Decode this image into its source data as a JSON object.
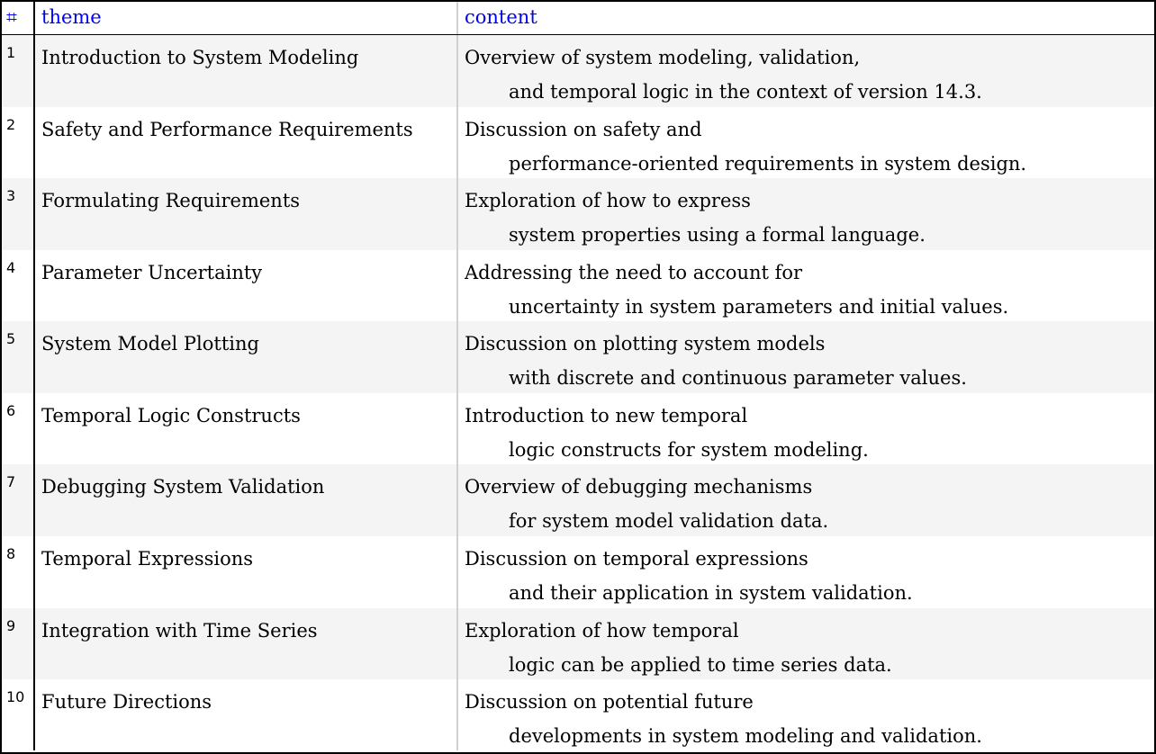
{
  "header": {
    "index": "⌗",
    "theme": "theme",
    "content": "content"
  },
  "rows": [
    {
      "n": "1",
      "theme": "Introduction to System Modeling",
      "line1": "Overview of system modeling, validation,",
      "line2": "and temporal logic in the context of version 14.3."
    },
    {
      "n": "2",
      "theme": "Safety and Performance Requirements",
      "line1": "Discussion on safety and",
      "line2": "performance-oriented requirements in system design."
    },
    {
      "n": "3",
      "theme": "Formulating Requirements",
      "line1": "Exploration of how to express",
      "line2": "system properties using a formal language."
    },
    {
      "n": "4",
      "theme": "Parameter Uncertainty",
      "line1": "Addressing the need to account for",
      "line2": "uncertainty in system parameters and initial values."
    },
    {
      "n": "5",
      "theme": "System Model Plotting",
      "line1": "Discussion on plotting system models",
      "line2": "with discrete and continuous parameter values."
    },
    {
      "n": "6",
      "theme": "Temporal Logic Constructs",
      "line1": "Introduction to new temporal",
      "line2": "logic constructs for system modeling."
    },
    {
      "n": "7",
      "theme": "Debugging System Validation",
      "line1": "Overview of debugging mechanisms",
      "line2": "for system model validation data."
    },
    {
      "n": "8",
      "theme": "Temporal Expressions",
      "line1": "Discussion on temporal expressions",
      "line2": "and their application in system validation."
    },
    {
      "n": "9",
      "theme": "Integration with Time Series",
      "line1": "Exploration of how temporal",
      "line2": "logic can be applied to time series data."
    },
    {
      "n": "10",
      "theme": "Future Directions",
      "line1": "Discussion on potential future",
      "line2": "developments in system modeling and validation."
    }
  ]
}
